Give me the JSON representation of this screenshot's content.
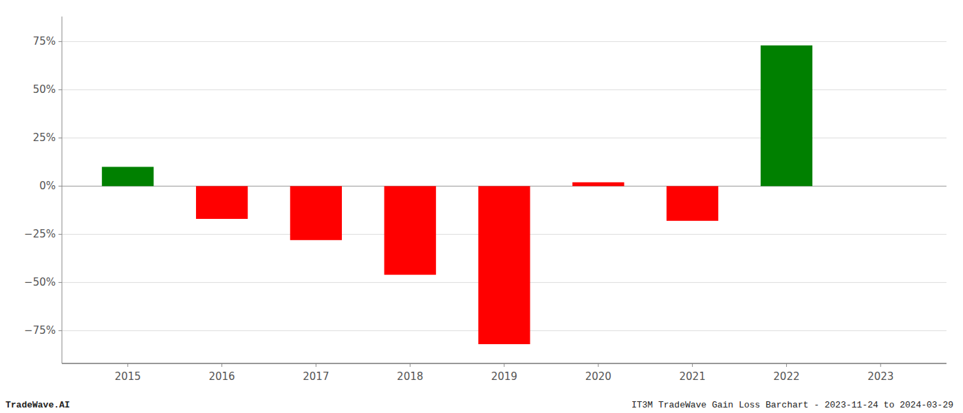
{
  "chart_data": {
    "type": "bar",
    "title": "IT3M TradeWave Gain Loss Barchart - 2023-11-24 to 2024-03-29",
    "annotations": [
      "TradeWave.AI"
    ],
    "x": [
      2015,
      2016,
      2017,
      2018,
      2019,
      2020,
      2021,
      2022
    ],
    "values": [
      0.1,
      -0.17,
      -0.28,
      -0.46,
      -0.82,
      0.02,
      -0.18,
      0.73
    ],
    "colors": [
      "#008000",
      "#ff0000",
      "#ff0000",
      "#ff0000",
      "#ff0000",
      "#ff0000",
      "#ff0000",
      "#008000"
    ],
    "xlim": [
      2014.3,
      2023.7
    ],
    "xticks": [
      2015,
      2016,
      2017,
      2018,
      2019,
      2020,
      2021,
      2022,
      2023
    ],
    "ylim": [
      -0.92,
      0.88
    ],
    "yticks": [
      {
        "value": -0.75,
        "label": "−75%"
      },
      {
        "value": -0.5,
        "label": "−50%"
      },
      {
        "value": -0.25,
        "label": "−25%"
      },
      {
        "value": 0.0,
        "label": "0%"
      },
      {
        "value": 0.25,
        "label": "25%"
      },
      {
        "value": 0.5,
        "label": "50%"
      },
      {
        "value": 0.75,
        "label": "75%"
      }
    ],
    "grid": true
  }
}
